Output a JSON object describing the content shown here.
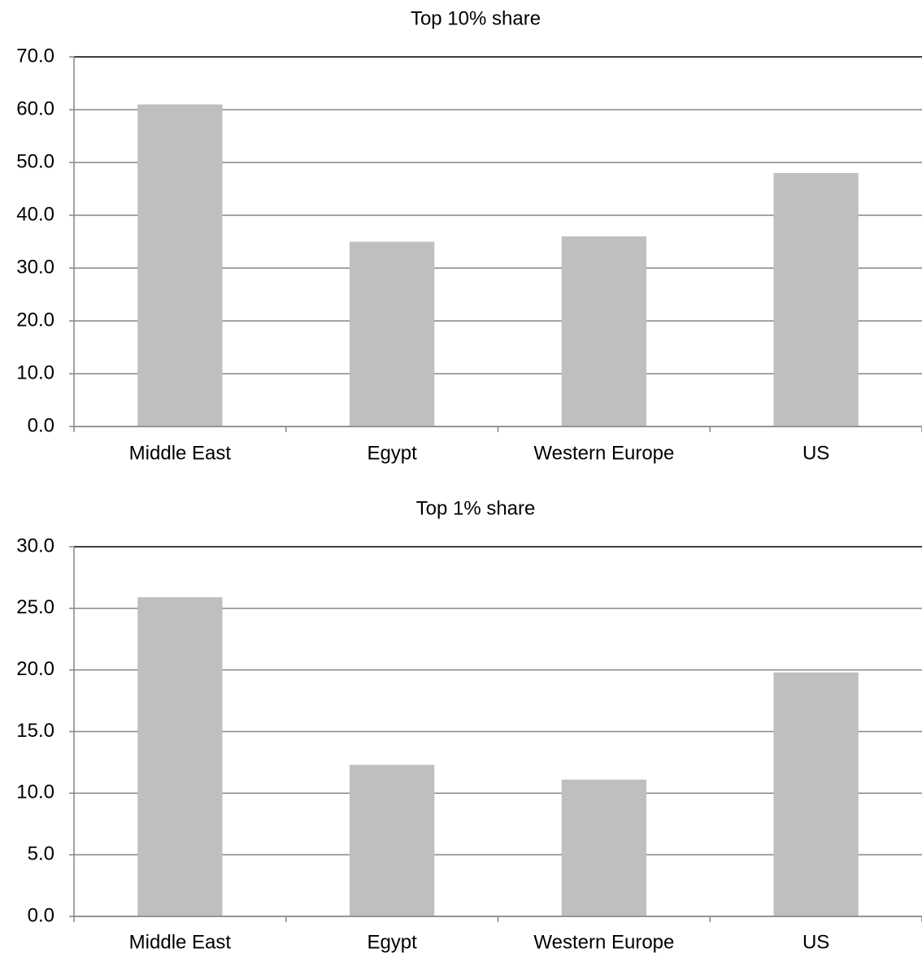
{
  "chart_data": [
    {
      "type": "bar",
      "title": "Top 10% share",
      "categories": [
        "Middle East",
        "Egypt",
        "Western Europe",
        "US"
      ],
      "values": [
        61,
        35,
        36,
        48
      ],
      "color": "#bfbfbf",
      "ylim": [
        0,
        70
      ],
      "yticks": [
        {
          "value": 0,
          "label": "0.0"
        },
        {
          "value": 10,
          "label": "10.0"
        },
        {
          "value": 20,
          "label": "20.0"
        },
        {
          "value": 30,
          "label": "30.0"
        },
        {
          "value": 40,
          "label": "40.0"
        },
        {
          "value": 50,
          "label": "50.0"
        },
        {
          "value": 60,
          "label": "60.0"
        },
        {
          "value": 70,
          "label": "70.0"
        }
      ],
      "grid": true
    },
    {
      "type": "bar",
      "title": "Top 1% share",
      "categories": [
        "Middle East",
        "Egypt",
        "Western Europe",
        "US"
      ],
      "values": [
        25.9,
        12.3,
        11.1,
        19.8
      ],
      "color": "#bfbfbf",
      "ylim": [
        0,
        30
      ],
      "yticks": [
        {
          "value": 0,
          "label": "0.0"
        },
        {
          "value": 5,
          "label": "5.0"
        },
        {
          "value": 10,
          "label": "10.0"
        },
        {
          "value": 15,
          "label": "15.0"
        },
        {
          "value": 20,
          "label": "20.0"
        },
        {
          "value": 25,
          "label": "25.0"
        },
        {
          "value": 30,
          "label": "30.0"
        }
      ],
      "grid": true
    }
  ]
}
